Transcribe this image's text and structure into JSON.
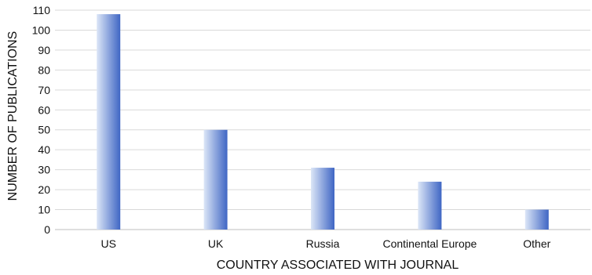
{
  "chart_data": {
    "type": "bar",
    "title": "",
    "xlabel": "COUNTRY ASSOCIATED WITH JOURNAL",
    "ylabel": "NUMBER OF PUBLICATIONS",
    "categories": [
      "US",
      "UK",
      "Russia",
      "Continental Europe",
      "Other"
    ],
    "values": [
      108,
      50,
      31,
      24,
      10
    ],
    "ylim": [
      0,
      110
    ],
    "yticks": [
      0,
      10,
      20,
      30,
      40,
      50,
      60,
      70,
      80,
      90,
      100,
      110
    ],
    "grid": true,
    "legend": "none"
  },
  "colors": {
    "bar_dark": "#3f66c4",
    "bar_light": "#dce6f7",
    "grid": "#d9d9d9",
    "axis": "#bfbfbf"
  }
}
